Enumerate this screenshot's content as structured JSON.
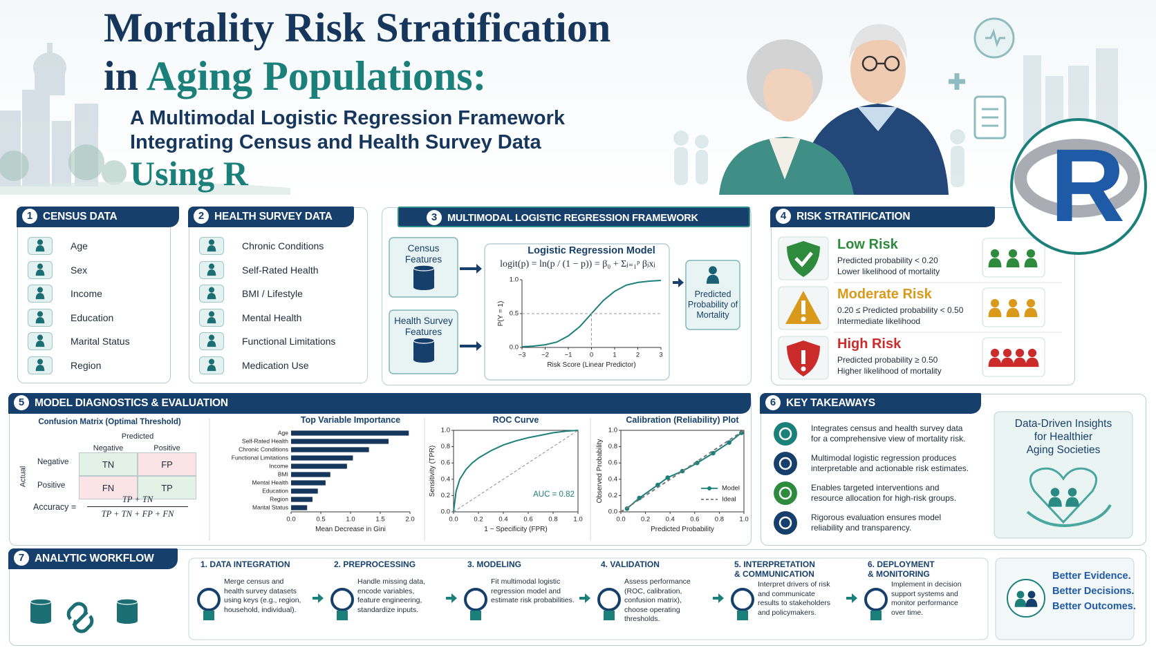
{
  "header": {
    "title_line1": "Mortality Risk Stratification",
    "title_line2_lead": "in",
    "title_line2_accent": "Aging Populations:",
    "subtitle_line1": "A Multimodal Logistic Regression Framework",
    "subtitle_line2": "Integrating Census and Health Survey Data",
    "subtitle_line3": "Using R",
    "logo": "R"
  },
  "census": {
    "number": "1",
    "title": "CENSUS DATA",
    "items": [
      "Age",
      "Sex",
      "Income",
      "Education",
      "Marital Status",
      "Region"
    ]
  },
  "health_survey": {
    "number": "2",
    "title": "HEALTH SURVEY DATA",
    "items": [
      "Chronic Conditions",
      "Self-Rated Health",
      "BMI / Lifestyle",
      "Mental Health",
      "Functional Limitations",
      "Medication Use"
    ]
  },
  "framework": {
    "number": "3",
    "title": "MULTIMODAL LOGISTIC REGRESSION FRAMEWORK",
    "inputs": [
      "Census Features",
      "Health Survey Features"
    ],
    "equation": "logit(p) = ln(p / (1 − p)) = β₀ + Σⱼ₌₁ᵖ βⱼxⱼ",
    "output": "Predicted Probability of Mortality"
  },
  "risk": {
    "number": "4",
    "title": "RISK STRATIFICATION",
    "tiers": [
      {
        "name": "Low Risk",
        "rule": "Predicted probability < 0.20",
        "note": "Lower likelihood of mortality",
        "color": "#2e8b3e"
      },
      {
        "name": "Moderate Risk",
        "rule": "0.20 ≤ Predicted probability < 0.50",
        "note": "Intermediate likelihood",
        "color": "#d99a1c"
      },
      {
        "name": "High Risk",
        "rule": "Predicted probability ≥ 0.50",
        "note": "Higher likelihood of mortality",
        "color": "#cc2b2b"
      }
    ]
  },
  "diagnostics": {
    "number": "5",
    "title": "MODEL DIAGNOSTICS & EVALUATION",
    "confusion": {
      "title": "Confusion Matrix (Optimal Threshold)",
      "predicted_label": "Predicted",
      "actual_label": "Actual",
      "columns": [
        "Negative",
        "Positive"
      ],
      "rows": [
        "Negative",
        "Positive"
      ],
      "cells": [
        [
          "TN",
          "FP"
        ],
        [
          "FN",
          "TP"
        ]
      ],
      "accuracy_label": "Accuracy =",
      "accuracy_numerator": "TP + TN",
      "accuracy_denominator": "TP + TN + FP + FN"
    }
  },
  "takeaways": {
    "number": "6",
    "title": "KEY TAKEAWAYS",
    "items": [
      [
        "Integrates census and health survey data",
        "for a comprehensive view of mortality risk."
      ],
      [
        "Multimodal logistic regression produces",
        "interpretable and actionable risk estimates."
      ],
      [
        "Enables targeted interventions and",
        "resource allocation for high-risk groups."
      ],
      [
        "Rigorous evaluation ensures model",
        "reliability and transparency."
      ]
    ],
    "callout": [
      "Data-Driven Insights",
      "for Healthier",
      "Aging Societies"
    ]
  },
  "workflow": {
    "number": "7",
    "title": "ANALYTIC WORKFLOW",
    "steps": [
      {
        "title": [
          "1. DATA INTEGRATION"
        ],
        "text": [
          "Merge census and",
          "health survey datasets",
          "using keys (e.g., region,",
          "household, individual)."
        ]
      },
      {
        "title": [
          "2. PREPROCESSING"
        ],
        "text": [
          "Handle missing data,",
          "encode variables,",
          "feature engineering,",
          "standardize inputs."
        ]
      },
      {
        "title": [
          "3. MODELING"
        ],
        "text": [
          "Fit multimodal logistic",
          "regression model and",
          "estimate risk probabilities."
        ]
      },
      {
        "title": [
          "4. VALIDATION"
        ],
        "text": [
          "Assess performance",
          "(ROC, calibration,",
          "confusion matrix),",
          "choose operating",
          "thresholds."
        ]
      },
      {
        "title": [
          "5. INTERPRETATION",
          "& COMMUNICATION"
        ],
        "text": [
          "Interpret drivers of risk",
          "and communicate",
          "results to stakeholders",
          "and policymakers."
        ]
      },
      {
        "title": [
          "6. DEPLOYMENT",
          "& MONITORING"
        ],
        "text": [
          "Implement in decision",
          "support systems and",
          "monitor performance",
          "over time."
        ]
      }
    ],
    "closing": [
      "Better Evidence.",
      "Better Decisions.",
      "Better Outcomes."
    ]
  },
  "chart_data": [
    {
      "type": "line",
      "title": "Logistic Regression Model",
      "x_label": "Risk Score (Linear Predictor)",
      "y_label": "P(Y = 1)",
      "xlim": [
        -3,
        3
      ],
      "ylim": [
        0,
        1
      ],
      "xticks": [
        {
          "value": -3,
          "label": "−3"
        },
        {
          "value": -2,
          "label": "−2"
        },
        {
          "value": -1,
          "label": "−1"
        },
        0,
        1,
        2,
        3
      ],
      "yticks": [
        {
          "value": 0,
          "label": "0.0"
        },
        {
          "value": 0.5,
          "label": "0.5"
        },
        {
          "value": 1,
          "label": "1.0"
        }
      ],
      "series": [
        {
          "color": "#1b7f7a",
          "x": [
            -3,
            -2.5,
            -2,
            -1.5,
            -1,
            -0.5,
            0,
            0.5,
            1,
            1.5,
            2,
            2.5,
            3
          ],
          "values": [
            0.01,
            0.02,
            0.04,
            0.08,
            0.17,
            0.31,
            0.5,
            0.69,
            0.83,
            0.92,
            0.96,
            0.98,
            0.99
          ]
        }
      ]
    },
    {
      "type": "bar",
      "orientation": "horizontal",
      "title": "Top Variable Importance",
      "x_label": "Mean Decrease in Gini",
      "categories": [
        "Age",
        "Self-Rated Health",
        "Chronic Conditions",
        "Functional Limitations",
        "Income",
        "BMI",
        "Mental Health",
        "Education",
        "Region",
        "Marital Status"
      ],
      "values": [
        1.98,
        1.64,
        1.31,
        1.04,
        0.94,
        0.66,
        0.58,
        0.45,
        0.36,
        0.27
      ],
      "color": "#16365c",
      "xlim": [
        0,
        2
      ],
      "xticks": [
        {
          "value": 0,
          "label": "0.0"
        },
        {
          "value": 0.5,
          "label": "0.5"
        },
        {
          "value": 1,
          "label": "1.0"
        },
        {
          "value": 1.5,
          "label": "1.5"
        },
        {
          "value": 2,
          "label": "2.0"
        }
      ]
    },
    {
      "type": "line",
      "title": "ROC Curve",
      "x_label": "1 − Specificity (FPR)",
      "y_label": "Sensitivity (TPR)",
      "annotation": "AUC = 0.82",
      "xlim": [
        0,
        1
      ],
      "ylim": [
        0,
        1
      ],
      "xticks": [
        {
          "value": 0,
          "label": "0.0"
        },
        {
          "value": 0.2,
          "label": "0.2"
        },
        {
          "value": 0.4,
          "label": "0.4"
        },
        {
          "value": 0.6,
          "label": "0.6"
        },
        {
          "value": 0.8,
          "label": "0.8"
        },
        {
          "value": 1,
          "label": "1.0"
        }
      ],
      "yticks": [
        {
          "value": 0,
          "label": "0.0"
        },
        {
          "value": 0.2,
          "label": "0.2"
        },
        {
          "value": 0.4,
          "label": "0.4"
        },
        {
          "value": 0.6,
          "label": "0.6"
        },
        {
          "value": 0.8,
          "label": "0.8"
        },
        {
          "value": 1,
          "label": "1.0"
        }
      ],
      "series": [
        {
          "color": "#1b7f7a",
          "x": [
            0,
            0.02,
            0.05,
            0.1,
            0.15,
            0.2,
            0.3,
            0.4,
            0.5,
            0.6,
            0.7,
            0.8,
            0.9,
            1
          ],
          "values": [
            0,
            0.25,
            0.4,
            0.52,
            0.6,
            0.66,
            0.75,
            0.82,
            0.87,
            0.91,
            0.94,
            0.97,
            0.99,
            1
          ]
        }
      ]
    },
    {
      "type": "line",
      "title": "Calibration (Reliability) Plot",
      "x_label": "Predicted Probability",
      "y_label": "Observed Probability",
      "legend": "lower right",
      "xlim": [
        0,
        1
      ],
      "ylim": [
        0,
        1
      ],
      "xticks": [
        {
          "value": 0,
          "label": "0.0"
        },
        {
          "value": 0.2,
          "label": "0.2"
        },
        {
          "value": 0.4,
          "label": "0.4"
        },
        {
          "value": 0.6,
          "label": "0.6"
        },
        {
          "value": 0.8,
          "label": "0.8"
        },
        {
          "value": 1,
          "label": "1.0"
        }
      ],
      "yticks": [
        {
          "value": 0,
          "label": "0.0"
        },
        {
          "value": 0.2,
          "label": "0.2"
        },
        {
          "value": 0.4,
          "label": "0.4"
        },
        {
          "value": 0.6,
          "label": "0.6"
        },
        {
          "value": 0.8,
          "label": "0.8"
        },
        {
          "value": 1,
          "label": "1.0"
        }
      ],
      "series": [
        {
          "name": "Model",
          "color": "#1b7f7a",
          "marker": "circle",
          "x": [
            0.05,
            0.15,
            0.3,
            0.38,
            0.5,
            0.62,
            0.75,
            0.88,
            0.98
          ],
          "values": [
            0.04,
            0.17,
            0.33,
            0.42,
            0.5,
            0.6,
            0.72,
            0.85,
            0.97
          ]
        },
        {
          "name": "Ideal",
          "color": "#777777",
          "dash": true,
          "x": [
            0,
            1
          ],
          "values": [
            0,
            1
          ]
        }
      ]
    }
  ]
}
